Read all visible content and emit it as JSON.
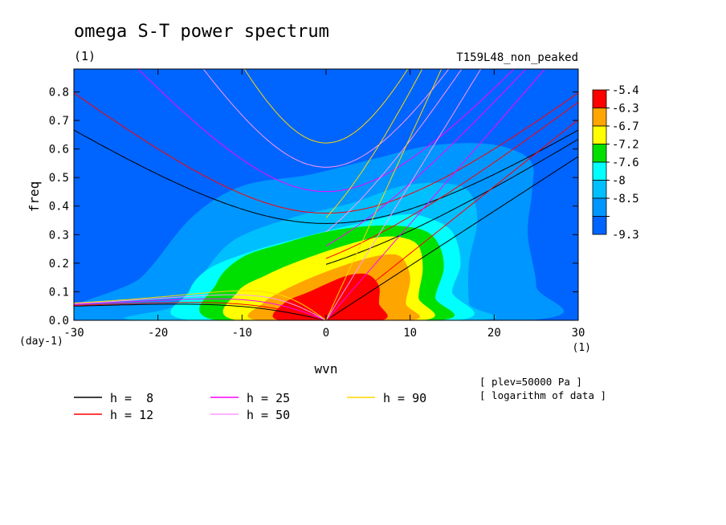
{
  "chart_data": {
    "type": "heatmap",
    "title": "omega S-T power spectrum",
    "unit": "(1)",
    "run_label": "T159L48_non_peaked",
    "xlabel": "wvn",
    "xunit": "(1)",
    "ylabel": "freq",
    "yunit": "(day-1)",
    "xlim": [
      -30,
      30
    ],
    "ylim": [
      0,
      0.88
    ],
    "xticks": [
      -30,
      -20,
      -10,
      0,
      10,
      20,
      30
    ],
    "xtick_labels": [
      "-30",
      "-20",
      "-10",
      "0",
      "10",
      "20",
      "30"
    ],
    "yticks": [
      0,
      0.1,
      0.2,
      0.3,
      0.4,
      0.5,
      0.6,
      0.7,
      0.8
    ],
    "ytick_labels": [
      "0.0",
      "0.1",
      "0.2",
      "0.3",
      "0.4",
      "0.5",
      "0.6",
      "0.7",
      "0.8"
    ],
    "colorbar": {
      "levels": [
        "-5.4",
        "-6.3",
        "-6.7",
        "-7.2",
        "-7.6",
        "-8",
        "-8.5",
        "-9.3"
      ],
      "colors": [
        "#ff0000",
        "#ffa500",
        "#ffff00",
        "#00e000",
        "#00ffff",
        "#00bfff",
        "#0096ff",
        "#0064ff"
      ]
    },
    "contour_regions": [
      {
        "level": "-8.5",
        "color": "#0096ff",
        "polygon": [
          [
            -29,
            0
          ],
          [
            -22,
            0.15
          ],
          [
            -16,
            0.36
          ],
          [
            -10,
            0.47
          ],
          [
            -2,
            0.51
          ],
          [
            5,
            0.56
          ],
          [
            12,
            0.61
          ],
          [
            18,
            0.62
          ],
          [
            22,
            0.6
          ],
          [
            24.5,
            0.55
          ],
          [
            24.5,
            0.45
          ],
          [
            24,
            0.3
          ],
          [
            25,
            0.12
          ],
          [
            24,
            0
          ]
        ]
      },
      {
        "level": "-8",
        "color": "#00bfff",
        "polygon": [
          [
            -22,
            0
          ],
          [
            -18,
            0.05
          ],
          [
            -15,
            0.15
          ],
          [
            -11,
            0.28
          ],
          [
            -4,
            0.36
          ],
          [
            3,
            0.41
          ],
          [
            9,
            0.47
          ],
          [
            14,
            0.48
          ],
          [
            17,
            0.45
          ],
          [
            18,
            0.35
          ],
          [
            17,
            0.2
          ],
          [
            17,
            0.06
          ],
          [
            17.5,
            0
          ]
        ]
      },
      {
        "level": "-7.6",
        "color": "#00ffff",
        "polygon": [
          [
            -16,
            0
          ],
          [
            -16.3,
            0.1
          ],
          [
            -14,
            0.18
          ],
          [
            -9,
            0.24
          ],
          [
            -3,
            0.29
          ],
          [
            4,
            0.34
          ],
          [
            9,
            0.37
          ],
          [
            12,
            0.36
          ],
          [
            15,
            0.31
          ],
          [
            16,
            0.2
          ],
          [
            15,
            0.1
          ],
          [
            15.5,
            0
          ]
        ]
      },
      {
        "level": "-7.2",
        "color": "#00e000",
        "polygon": [
          [
            -13,
            0
          ],
          [
            -13,
            0.13
          ],
          [
            -10,
            0.22
          ],
          [
            -5,
            0.27
          ],
          [
            0,
            0.31
          ],
          [
            5,
            0.33
          ],
          [
            9,
            0.33
          ],
          [
            12,
            0.31
          ],
          [
            13.5,
            0.26
          ],
          [
            14,
            0.18
          ],
          [
            13,
            0.08
          ],
          [
            13.5,
            0
          ]
        ]
      },
      {
        "level": "-6.7",
        "color": "#ffff00",
        "polygon": [
          [
            -10.5,
            0
          ],
          [
            -10.5,
            0.1
          ],
          [
            -7,
            0.16
          ],
          [
            -3,
            0.21
          ],
          [
            2,
            0.26
          ],
          [
            6,
            0.29
          ],
          [
            9,
            0.29
          ],
          [
            11,
            0.26
          ],
          [
            11.5,
            0.18
          ],
          [
            11,
            0.08
          ],
          [
            11.5,
            0
          ]
        ]
      },
      {
        "level": "-6.3",
        "color": "#ffa500",
        "polygon": [
          [
            -8,
            0
          ],
          [
            -7.5,
            0.06
          ],
          [
            -4,
            0.12
          ],
          [
            0,
            0.17
          ],
          [
            4,
            0.21
          ],
          [
            7,
            0.23
          ],
          [
            9,
            0.22
          ],
          [
            10,
            0.15
          ],
          [
            9.5,
            0.06
          ],
          [
            10,
            0
          ]
        ]
      },
      {
        "level": "-5.4",
        "color": "#ff0000",
        "polygon": [
          [
            -5.5,
            0
          ],
          [
            -5,
            0.06
          ],
          [
            -2,
            0.1
          ],
          [
            1,
            0.14
          ],
          [
            3,
            0.16
          ],
          [
            5,
            0.16
          ],
          [
            6.3,
            0.12
          ],
          [
            6.3,
            0.06
          ],
          [
            6.5,
            0
          ]
        ]
      }
    ],
    "series": [
      {
        "name": "h =  8",
        "color": "#000000",
        "h": 8
      },
      {
        "name": "h = 12",
        "color": "#ff0000",
        "h": 12
      },
      {
        "name": "h = 25",
        "color": "#ff00ff",
        "h": 25
      },
      {
        "name": "h = 50",
        "color": "#ff99ff",
        "h": 50
      },
      {
        "name": "h = 90",
        "color": "#ffd700",
        "h": 90
      }
    ],
    "notes": [
      "[ plev=50000 Pa ]",
      "[ logarithm of data ]"
    ]
  }
}
